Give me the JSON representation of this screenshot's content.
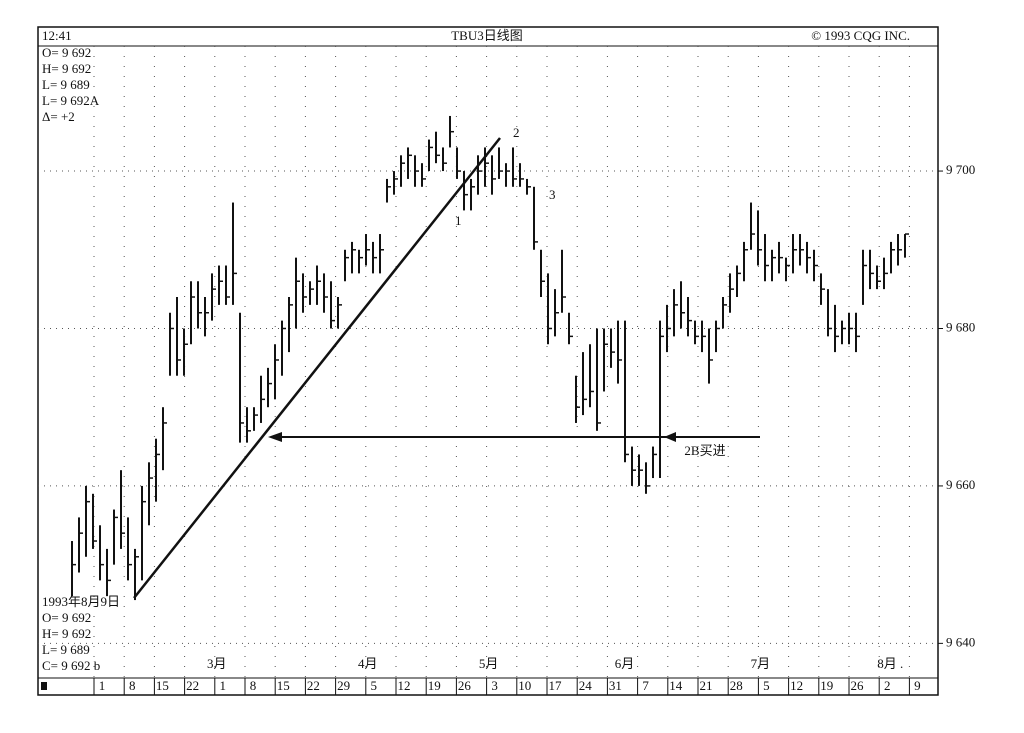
{
  "chart_data": {
    "type": "ohlc",
    "time": "12:41",
    "title": "TBU3日线图",
    "copyright_top": "© 1993 CQG INC.",
    "info_top": [
      "O= 9 692",
      "H= 9 692",
      "L= 9 689",
      "L= 9 692A",
      "Δ=      +2"
    ],
    "info_bottom": [
      "1993年8月9日",
      "O= 9 692",
      "H= 9 692",
      "L= 9 689",
      "C= 9 692 b"
    ],
    "annotations": [
      "1",
      "2",
      "3",
      "2B买进"
    ],
    "months": [
      "3月",
      "4月",
      "5月",
      "6月",
      "7月",
      "8月 ."
    ],
    "categories": [
      "1",
      "8",
      "15",
      "22",
      "1",
      "8",
      "15",
      "22",
      "29",
      "5",
      "12",
      "19",
      "26",
      "3",
      "10",
      "17",
      "24",
      "31",
      "7",
      "14",
      "21",
      "28",
      "5",
      "12",
      "19",
      "26",
      "2",
      "9"
    ],
    "color": "#111111",
    "ylim": [
      9635.6,
      9718.3
    ],
    "yticks": [
      {
        "value": 9640,
        "label": "9 640"
      },
      {
        "value": 9660,
        "label": "9 660"
      },
      {
        "value": 9680,
        "label": "9 680"
      },
      {
        "value": 9700,
        "label": "9 700"
      }
    ],
    "grid": true,
    "high": [
      9653,
      9656,
      9660,
      9659,
      9655,
      9652,
      9657,
      9662,
      9656,
      9652,
      9660,
      9663,
      9666,
      9670,
      9682,
      9684,
      9680,
      9686,
      9686,
      9684,
      9687,
      9688,
      9688,
      9696,
      9682,
      9670,
      9670,
      9674,
      9675,
      9678,
      9681,
      9684,
      9689,
      9687,
      9686,
      9688,
      9687,
      9686,
      9684,
      9690,
      9691,
      9690,
      9692,
      9691,
      9692,
      9699,
      9700,
      9702,
      9703,
      9702,
      9701,
      9704,
      9705,
      9703,
      9707,
      9703,
      9700,
      9699,
      9702,
      9703,
      9702,
      9703,
      9701,
      9703,
      9701,
      9699,
      9698,
      9690,
      9687,
      9685,
      9690,
      9682,
      9674,
      9677,
      9678,
      9680,
      9680,
      9680,
      9681,
      9681,
      9665,
      9664,
      9663,
      9665,
      9681,
      9683,
      9685,
      9686,
      9684,
      9681,
      9681,
      9680,
      9681,
      9684,
      9687,
      9688,
      9691,
      9696,
      9695,
      9692,
      9690,
      9691,
      9689,
      9692,
      9692,
      9691,
      9690,
      9687,
      9685,
      9683,
      9681,
      9682,
      9682,
      9690,
      9690,
      9688,
      9689,
      9691,
      9692,
      9692
    ],
    "low": [
      9646,
      9649,
      9651,
      9652,
      9648,
      9646,
      9650,
      9652,
      9648,
      9645.5,
      9648,
      9655,
      9658,
      9662,
      9674,
      9674,
      9674,
      9678,
      9680,
      9679,
      9681,
      9683,
      9683,
      9683,
      9665.5,
      9665.5,
      9667,
      9668,
      9670,
      9671,
      9674,
      9677,
      9680,
      9682,
      9683,
      9683,
      9682,
      9680,
      9680,
      9686,
      9687,
      9687,
      9688,
      9687,
      9687,
      9696,
      9697,
      9698,
      9699,
      9698,
      9698,
      9700,
      9701,
      9700,
      9703,
      9699,
      9695,
      9695,
      9697,
      9698,
      9697,
      9699,
      9698,
      9698,
      9698,
      9697,
      9690,
      9684,
      9678,
      9679,
      9682,
      9678,
      9668,
      9669,
      9670,
      9667,
      9672,
      9675,
      9673,
      9663,
      9660,
      9660,
      9659,
      9661,
      9661,
      9677,
      9679,
      9680,
      9679,
      9678,
      9677,
      9673,
      9677,
      9680,
      9682,
      9684,
      9686,
      9690,
      9688,
      9686,
      9686,
      9687,
      9686,
      9687,
      9688,
      9687,
      9686,
      9683,
      9679,
      9677,
      9678,
      9678,
      9677,
      9683,
      9685,
      9685,
      9685,
      9687,
      9688,
      9689
    ],
    "close": [
      9650,
      9654,
      9658,
      9653,
      9650,
      9648,
      9656,
      9654,
      9650,
      9651,
      9658,
      9661,
      9664,
      9668,
      9680,
      9676,
      9678,
      9684,
      9682,
      9682,
      9685,
      9686,
      9684,
      9687,
      9668,
      9667,
      9669,
      9671,
      9673,
      9676,
      9680,
      9683,
      9686,
      9684,
      9685,
      9686,
      9684,
      9681,
      9683,
      9689,
      9690,
      9689,
      9690,
      9689,
      9690,
      9698,
      9699,
      9701,
      9702,
      9700,
      9699,
      9703,
      9702,
      9701,
      9705,
      9700,
      9697,
      9698,
      9700,
      9701,
      9699,
      9700,
      9700,
      9699,
      9699,
      9698,
      9691,
      9686,
      9680,
      9682,
      9684,
      9679,
      9670,
      9671,
      9672,
      9668,
      9678,
      9677,
      9676,
      9664,
      9662,
      9662,
      9660,
      9664,
      9679,
      9680,
      9683,
      9682,
      9681,
      9679,
      9679,
      9676,
      9680,
      9683,
      9685,
      9687,
      9690,
      9692,
      9690,
      9688,
      9689,
      9689,
      9688,
      9690,
      9690,
      9689,
      9688,
      9685,
      9680,
      9679,
      9680,
      9680,
      9679,
      9688,
      9687,
      9686,
      9687,
      9690,
      9690,
      9692
    ]
  }
}
